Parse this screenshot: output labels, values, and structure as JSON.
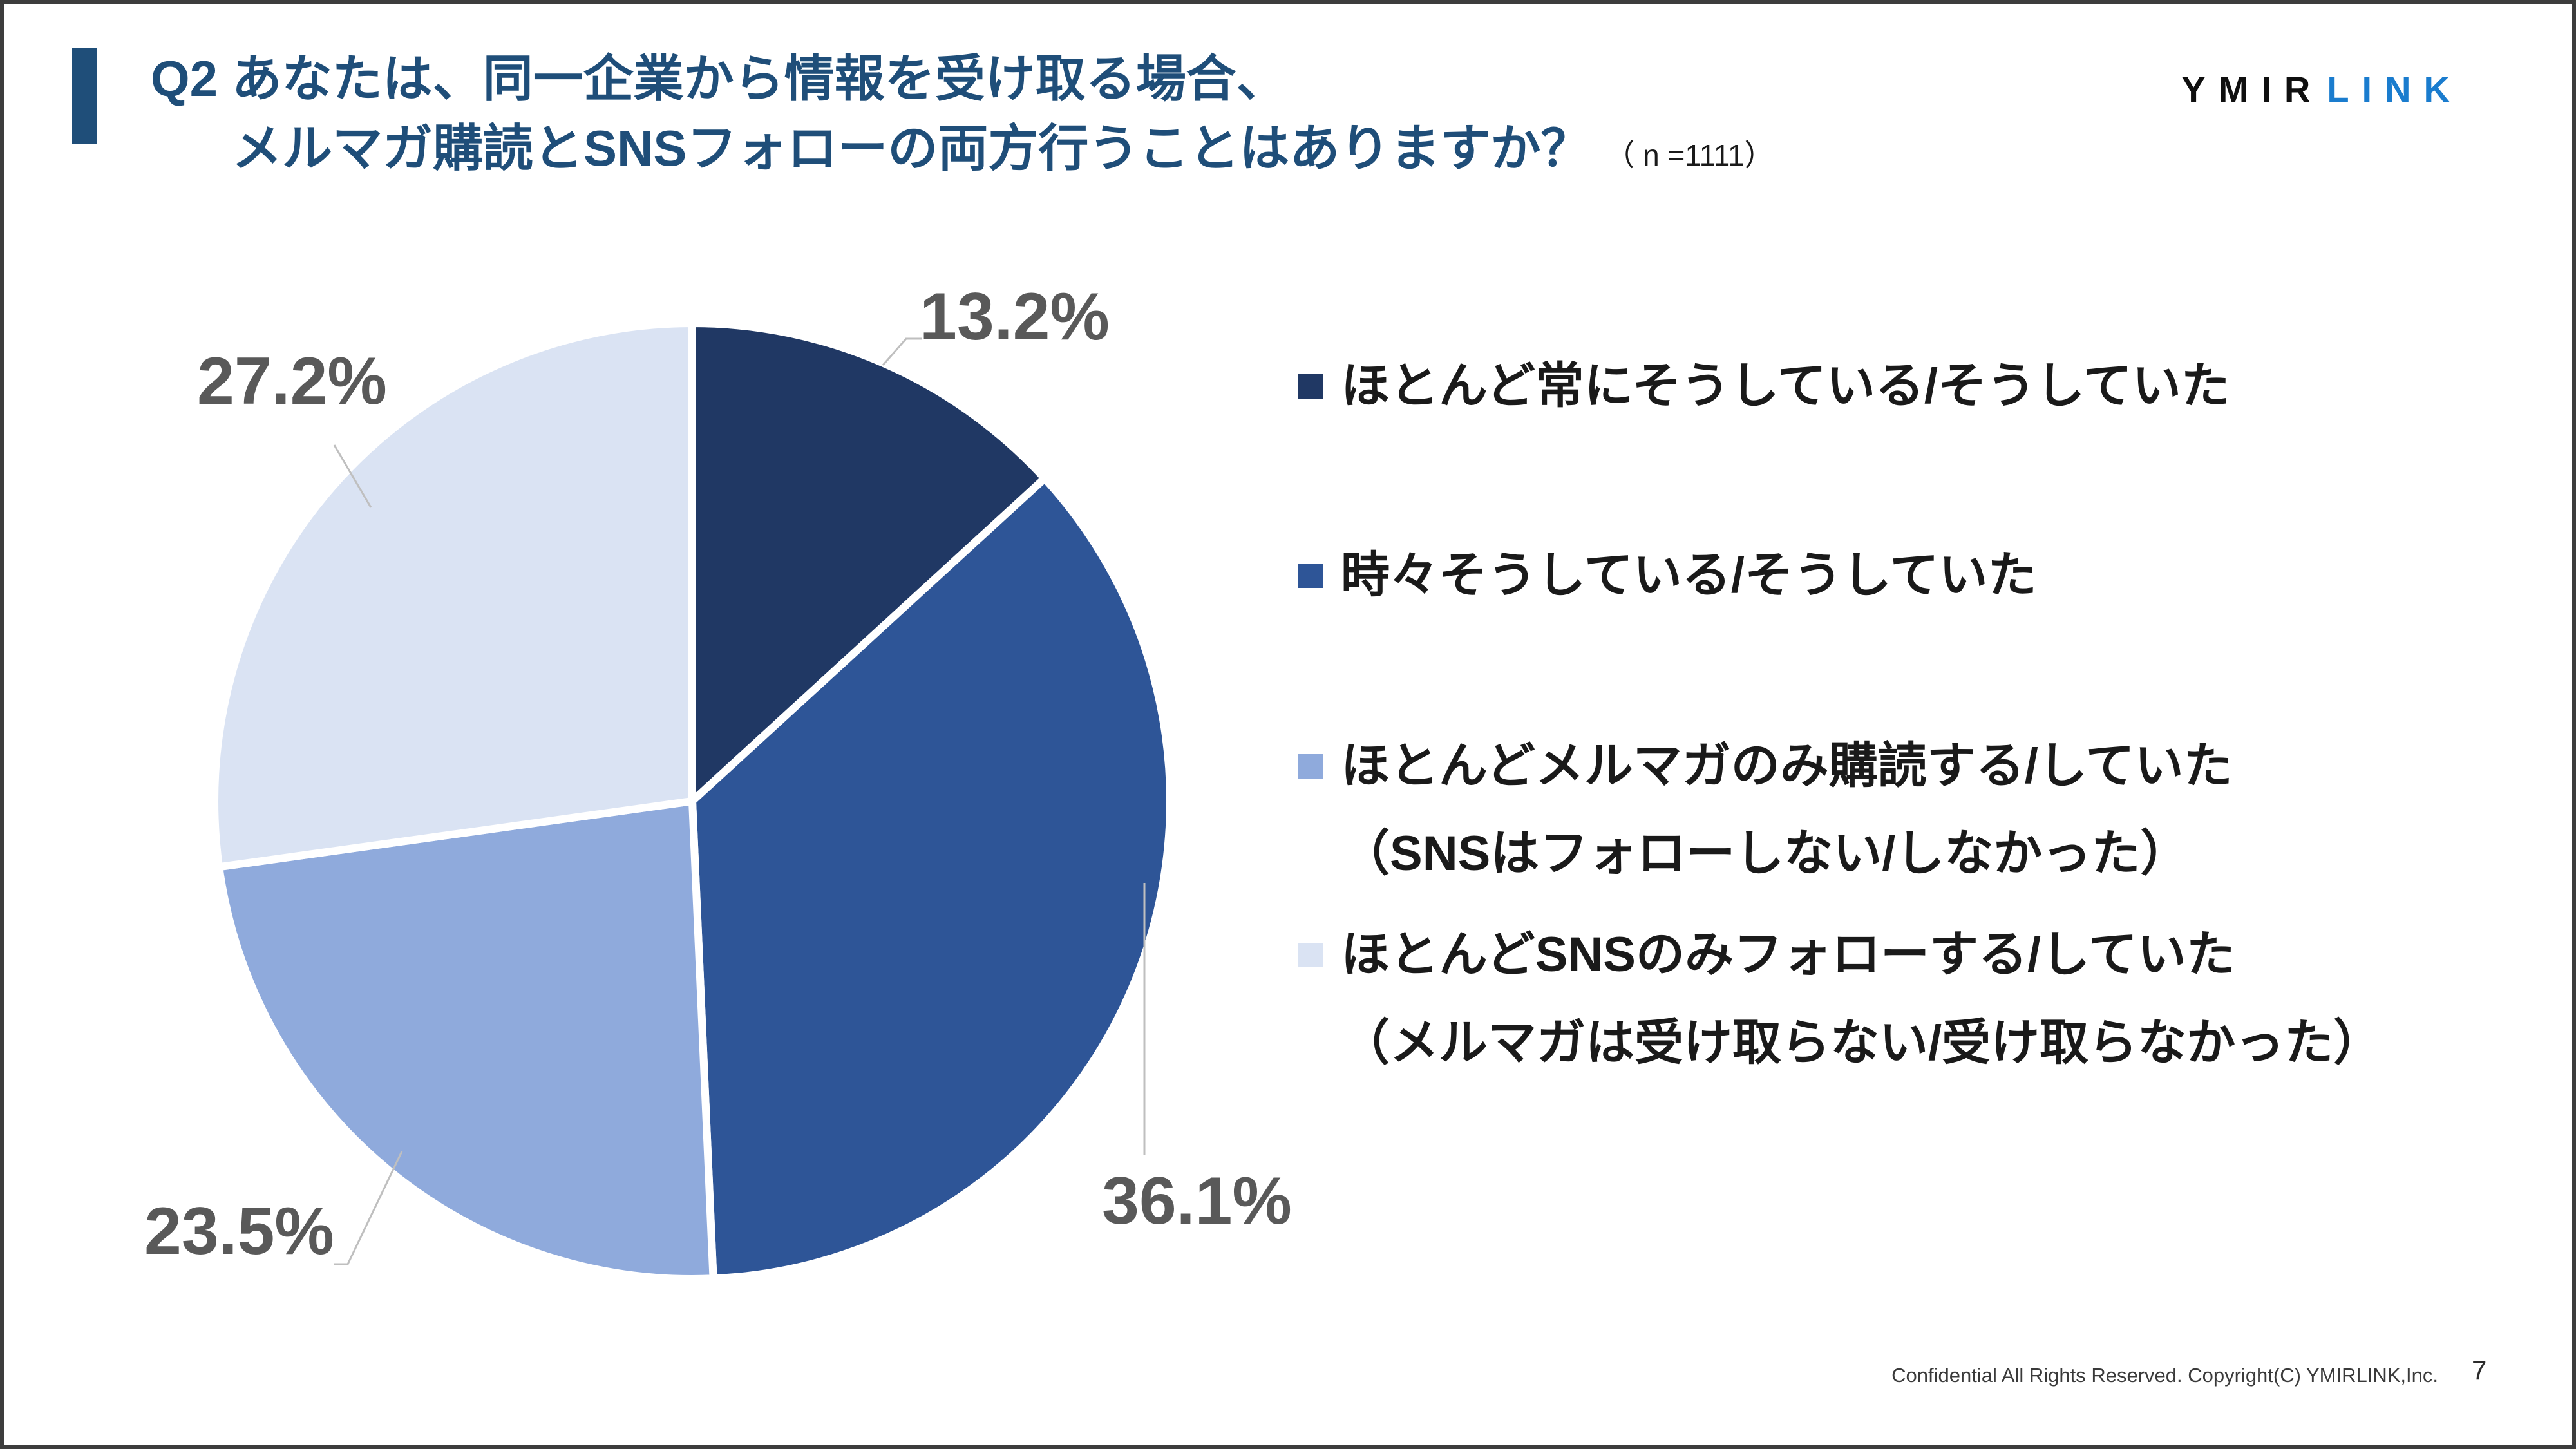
{
  "slide": {
    "title": {
      "line1": "Q2 あなたは、同一企業から情報を受け取る場合、",
      "line2": "メルマガ購読とSNSフォローの両方行うことはありますか？",
      "sample_size": "（ n =1111）"
    },
    "logo": {
      "part1": "YMIR",
      "part2": "LINK"
    },
    "footer": {
      "confidential": "Confidential All Rights Reserved. Copyright(C) YMIRLINK,Inc.",
      "page_number": "7"
    },
    "colors": {
      "title_text": "#1F4E79",
      "accent_bar": "#1F4E79",
      "logo_part1": "#0F0F0F",
      "logo_part2": "#1A7CCE",
      "percent_label": "#595959",
      "leader_line": "#BFBFBF",
      "slide_border": "#3D3D3D"
    }
  },
  "chart_data": {
    "type": "pie",
    "labels": [
      "ほとんど常にそうしている/そうしていた",
      "時々そうしている/そうしていた",
      "ほとんどメルマガのみ購読する/していた（SNSはフォローしない/しなかった）",
      "ほとんどSNSのみフォローする/していた（メルマガは受け取らない/受け取らなかった）"
    ],
    "values": [
      13.2,
      36.1,
      23.5,
      27.2
    ],
    "unit": "%",
    "point_labels": [
      "13.2%",
      "36.1%",
      "23.5%",
      "27.2%"
    ],
    "colors": [
      "#203864",
      "#2E5597",
      "#8FAADC",
      "#DAE3F3"
    ],
    "start_angle_deg": 0,
    "direction": "clockwise",
    "legend_position": "right",
    "legend": [
      {
        "label": "ほとんど常にそうしている/そうしていた",
        "label_line2": ""
      },
      {
        "label": "時々そうしている/そうしていた",
        "label_line2": ""
      },
      {
        "label": "ほとんどメルマガのみ購読する/していた",
        "label_line2": "（SNSはフォローしない/しなかった）"
      },
      {
        "label": "ほとんどSNSのみフォローする/していた",
        "label_line2": "（メルマガは受け取らない/受け取らなかった）"
      }
    ]
  }
}
